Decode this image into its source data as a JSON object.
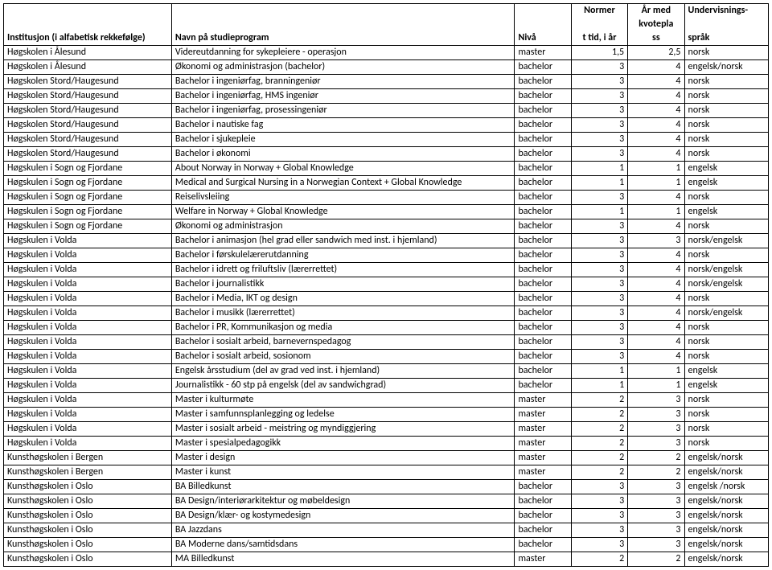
{
  "headers": {
    "c0_line3": "Institusjon (i alfabetisk rekkefølge)",
    "c1_line3": "Navn på studieprogram",
    "c2_line3": "Nivå",
    "c3_line1": "Normer",
    "c3_line3": "t tid, i år",
    "c4_line1": "År med",
    "c4_line2": "kvotepla",
    "c4_line3": "ss",
    "c5_line1": "Undervisnings-",
    "c5_line3": "språk"
  },
  "rows": [
    {
      "inst": "Høgskolen i Ålesund",
      "prog": "Videreutdanning for sykepleiere - operasjon",
      "nivaa": "master",
      "tid": "1,5",
      "aar": "2,5",
      "sprak": "norsk"
    },
    {
      "inst": "Høgskolen i Ålesund",
      "prog": "Økonomi og administrasjon (bachelor)",
      "nivaa": "bachelor",
      "tid": "3",
      "aar": "4",
      "sprak": "engelsk/norsk"
    },
    {
      "inst": "Høgskolen Stord/Haugesund",
      "prog": "Bachelor i ingeniørfag, branningeniør",
      "nivaa": "bachelor",
      "tid": "3",
      "aar": "4",
      "sprak": "norsk"
    },
    {
      "inst": "Høgskolen Stord/Haugesund",
      "prog": "Bachelor i ingeniørfag, HMS ingeniør",
      "nivaa": "bachelor",
      "tid": "3",
      "aar": "4",
      "sprak": "norsk"
    },
    {
      "inst": "Høgskolen Stord/Haugesund",
      "prog": "Bachelor i ingeniørfag, prosessingeniør",
      "nivaa": "bachelor",
      "tid": "3",
      "aar": "4",
      "sprak": "norsk"
    },
    {
      "inst": "Høgskolen Stord/Haugesund",
      "prog": "Bachelor i nautiske fag",
      "nivaa": "bachelor",
      "tid": "3",
      "aar": "4",
      "sprak": "norsk"
    },
    {
      "inst": "Høgskolen Stord/Haugesund",
      "prog": "Bachelor i sjukepleie",
      "nivaa": "bachelor",
      "tid": "3",
      "aar": "4",
      "sprak": "norsk"
    },
    {
      "inst": "Høgskolen Stord/Haugesund",
      "prog": "Bachelor i økonomi",
      "nivaa": "bachelor",
      "tid": "3",
      "aar": "4",
      "sprak": "norsk"
    },
    {
      "inst": "Høgskulen i Sogn og Fjordane",
      "prog": "About Norway in Norway + Global Knowledge",
      "nivaa": "bachelor",
      "tid": "1",
      "aar": "1",
      "sprak": "engelsk"
    },
    {
      "inst": "Høgskulen i Sogn og Fjordane",
      "prog": "Medical and Surgical Nursing in a Norwegian Context + Global Knowledge",
      "nivaa": "bachelor",
      "tid": "1",
      "aar": "1",
      "sprak": "engelsk"
    },
    {
      "inst": "Høgskulen i Sogn og Fjordane",
      "prog": "Reiselivsleiing",
      "nivaa": "bachelor",
      "tid": "3",
      "aar": "4",
      "sprak": "norsk"
    },
    {
      "inst": "Høgskulen i Sogn og Fjordane",
      "prog": "Welfare in Norway + Global Knowledge",
      "nivaa": "bachelor",
      "tid": "1",
      "aar": "1",
      "sprak": "engelsk"
    },
    {
      "inst": "Høgskulen i Sogn og Fjordane",
      "prog": "Økonomi og administrasjon",
      "nivaa": "bachelor",
      "tid": "3",
      "aar": "4",
      "sprak": "norsk"
    },
    {
      "inst": "Høgskulen i Volda",
      "prog": "Bachelor i animasjon  (hel grad eller sandwich med inst. i hjemland)",
      "nivaa": "bachelor",
      "tid": "3",
      "aar": "3",
      "sprak": "norsk/engelsk"
    },
    {
      "inst": "Høgskulen i Volda",
      "prog": "Bachelor i førskulelærerutdanning",
      "nivaa": "bachelor",
      "tid": "3",
      "aar": "4",
      "sprak": "norsk"
    },
    {
      "inst": "Høgskulen i Volda",
      "prog": "Bachelor i idrett og friluftsliv (lærerrettet)",
      "nivaa": "bachelor",
      "tid": "3",
      "aar": "4",
      "sprak": "norsk/engelsk"
    },
    {
      "inst": "Høgskulen i Volda",
      "prog": "Bachelor i journalistikk",
      "nivaa": "bachelor",
      "tid": "3",
      "aar": "4",
      "sprak": "norsk/engelsk"
    },
    {
      "inst": "Høgskulen i Volda",
      "prog": "Bachelor i Media, IKT og design",
      "nivaa": "bachelor",
      "tid": "3",
      "aar": "4",
      "sprak": "norsk"
    },
    {
      "inst": "Høgskulen i Volda",
      "prog": "Bachelor i musikk (lærerrettet)",
      "nivaa": "bachelor",
      "tid": "3",
      "aar": "4",
      "sprak": "norsk/engelsk"
    },
    {
      "inst": "Høgskulen i Volda",
      "prog": "Bachelor i PR, Kommunikasjon og media",
      "nivaa": "bachelor",
      "tid": "3",
      "aar": "4",
      "sprak": "norsk"
    },
    {
      "inst": "Høgskulen i Volda",
      "prog": "Bachelor i sosialt arbeid, barnevernspedagog",
      "nivaa": "bachelor",
      "tid": "3",
      "aar": "4",
      "sprak": "norsk"
    },
    {
      "inst": "Høgskulen i Volda",
      "prog": "Bachelor i sosialt arbeid, sosionom",
      "nivaa": "bachelor",
      "tid": "3",
      "aar": "4",
      "sprak": "norsk"
    },
    {
      "inst": "Høgskulen i Volda",
      "prog": "Engelsk årsstudium (del av grad ved inst. i hjemland)",
      "nivaa": "bachelor",
      "tid": "1",
      "aar": "1",
      "sprak": "engelsk"
    },
    {
      "inst": "Høgskulen i Volda",
      "prog": "Journalistikk  - 60 stp på engelsk (del av sandwichgrad)",
      "nivaa": "bachelor",
      "tid": "1",
      "aar": "1",
      "sprak": "engelsk"
    },
    {
      "inst": "Høgskulen i Volda",
      "prog": "Master i kulturmøte",
      "nivaa": "master",
      "tid": "2",
      "aar": "3",
      "sprak": "norsk"
    },
    {
      "inst": "Høgskulen i Volda",
      "prog": "Master i samfunnsplanlegging og ledelse",
      "nivaa": "master",
      "tid": "2",
      "aar": "3",
      "sprak": "norsk"
    },
    {
      "inst": "Høgskulen i Volda",
      "prog": "Master i sosialt arbeid - meistring og myndiggjering",
      "nivaa": "master",
      "tid": "2",
      "aar": "3",
      "sprak": "norsk"
    },
    {
      "inst": "Høgskulen i Volda",
      "prog": "Master i spesialpedagogikk",
      "nivaa": "master",
      "tid": "2",
      "aar": "3",
      "sprak": "norsk"
    },
    {
      "inst": "Kunsthøgskolen i Bergen",
      "prog": "Master i design",
      "nivaa": "master",
      "tid": "2",
      "aar": "2",
      "sprak": "engelsk/norsk"
    },
    {
      "inst": "Kunsthøgskolen i Bergen",
      "prog": "Master i kunst",
      "nivaa": "master",
      "tid": "2",
      "aar": "2",
      "sprak": "engelsk/norsk"
    },
    {
      "inst": "Kunsthøgskolen i Oslo",
      "prog": "BA Billedkunst",
      "nivaa": "bachelor",
      "tid": "3",
      "aar": "3",
      "sprak": "engelsk /norsk"
    },
    {
      "inst": "Kunsthøgskolen i Oslo",
      "prog": "BA Design/interiørarkitektur og møbeldesign",
      "nivaa": "bachelor",
      "tid": "3",
      "aar": "3",
      "sprak": "engelsk/norsk"
    },
    {
      "inst": "Kunsthøgskolen i Oslo",
      "prog": "BA Design/klær- og kostymedesign",
      "nivaa": "bachelor",
      "tid": "3",
      "aar": "3",
      "sprak": "engelsk/norsk"
    },
    {
      "inst": "Kunsthøgskolen i Oslo",
      "prog": "BA Jazzdans",
      "nivaa": "bachelor",
      "tid": "3",
      "aar": "3",
      "sprak": "engelsk/norsk"
    },
    {
      "inst": "Kunsthøgskolen i Oslo",
      "prog": "BA Moderne dans/samtidsdans",
      "nivaa": "bachelor",
      "tid": "3",
      "aar": "3",
      "sprak": "engelsk/norsk"
    },
    {
      "inst": "Kunsthøgskolen i Oslo",
      "prog": "MA Billedkunst",
      "nivaa": "master",
      "tid": "2",
      "aar": "2",
      "sprak": "engelsk/norsk"
    }
  ]
}
